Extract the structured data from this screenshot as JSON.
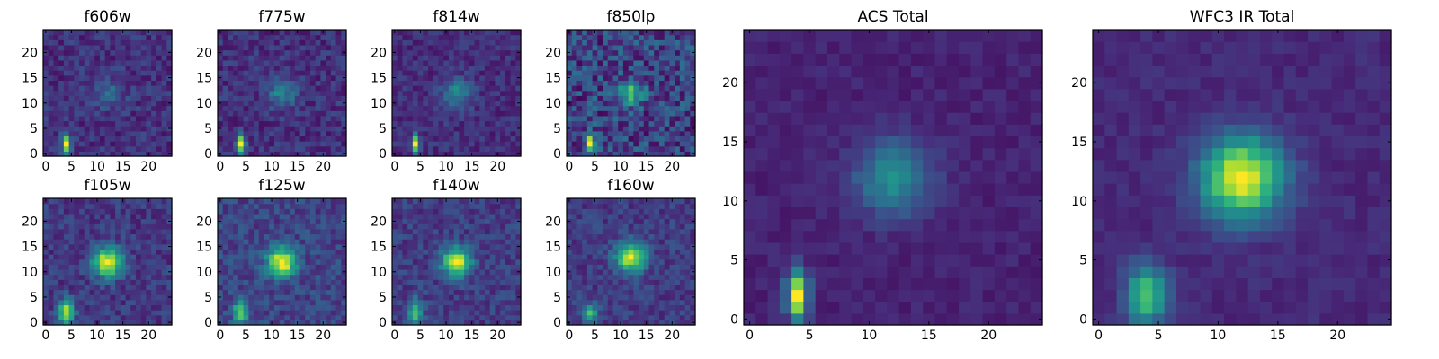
{
  "chart_data": [
    {
      "type": "heatmap",
      "title": "f606w",
      "xlim": [
        -0.5,
        24.5
      ],
      "ylim": [
        -0.5,
        24.5
      ],
      "xticks": [
        "0",
        "5",
        "10",
        "15",
        "20"
      ],
      "yticks": [
        "0",
        "5",
        "10",
        "15",
        "20"
      ],
      "sources": [
        {
          "x": 4,
          "y": 2,
          "sigma_x": 0.55,
          "sigma_y": 1.3,
          "amplitude": 0.9
        },
        {
          "x": 12,
          "y": 12,
          "sigma_x": 2.2,
          "sigma_y": 2.2,
          "amplitude": 0.2
        }
      ],
      "background": 0.15,
      "noise": 0.1
    },
    {
      "type": "heatmap",
      "title": "f775w",
      "xlim": [
        -0.5,
        24.5
      ],
      "ylim": [
        -0.5,
        24.5
      ],
      "xticks": [
        "0",
        "5",
        "10",
        "15",
        "20"
      ],
      "yticks": [
        "0",
        "5",
        "10",
        "15",
        "20"
      ],
      "sources": [
        {
          "x": 4,
          "y": 2,
          "sigma_x": 0.55,
          "sigma_y": 1.3,
          "amplitude": 0.85
        },
        {
          "x": 12,
          "y": 12,
          "sigma_x": 2.0,
          "sigma_y": 2.0,
          "amplitude": 0.3
        }
      ],
      "background": 0.15,
      "noise": 0.1
    },
    {
      "type": "heatmap",
      "title": "f814w",
      "xlim": [
        -0.5,
        24.5
      ],
      "ylim": [
        -0.5,
        24.5
      ],
      "xticks": [
        "0",
        "5",
        "10",
        "15",
        "20"
      ],
      "yticks": [
        "0",
        "5",
        "10",
        "15",
        "20"
      ],
      "sources": [
        {
          "x": 4,
          "y": 2,
          "sigma_x": 0.55,
          "sigma_y": 1.3,
          "amplitude": 0.85
        },
        {
          "x": 12,
          "y": 12,
          "sigma_x": 2.1,
          "sigma_y": 2.1,
          "amplitude": 0.35
        }
      ],
      "background": 0.15,
      "noise": 0.09
    },
    {
      "type": "heatmap",
      "title": "f850lp",
      "xlim": [
        -0.5,
        24.5
      ],
      "ylim": [
        -0.5,
        24.5
      ],
      "xticks": [
        "0",
        "5",
        "10",
        "15",
        "20"
      ],
      "yticks": [
        "0",
        "5",
        "10",
        "15",
        "20"
      ],
      "sources": [
        {
          "x": 4,
          "y": 2,
          "sigma_x": 0.55,
          "sigma_y": 1.3,
          "amplitude": 0.8
        },
        {
          "x": 12,
          "y": 12,
          "sigma_x": 1.7,
          "sigma_y": 1.7,
          "amplitude": 0.45
        }
      ],
      "background": 0.2,
      "noise": 0.18
    },
    {
      "type": "heatmap",
      "title": "f105w",
      "xlim": [
        -0.5,
        24.5
      ],
      "ylim": [
        -0.5,
        24.5
      ],
      "xticks": [
        "0",
        "5",
        "10",
        "15",
        "20"
      ],
      "yticks": [
        "0",
        "5",
        "10",
        "15",
        "20"
      ],
      "sources": [
        {
          "x": 4,
          "y": 2,
          "sigma_x": 1.0,
          "sigma_y": 1.8,
          "amplitude": 0.75
        },
        {
          "x": 12,
          "y": 12,
          "sigma_x": 2.0,
          "sigma_y": 2.0,
          "amplitude": 0.85
        }
      ],
      "background": 0.18,
      "noise": 0.1
    },
    {
      "type": "heatmap",
      "title": "f125w",
      "xlim": [
        -0.5,
        24.5
      ],
      "ylim": [
        -0.5,
        24.5
      ],
      "xticks": [
        "0",
        "5",
        "10",
        "15",
        "20"
      ],
      "yticks": [
        "0",
        "5",
        "10",
        "15",
        "20"
      ],
      "sources": [
        {
          "x": 4,
          "y": 2,
          "sigma_x": 1.0,
          "sigma_y": 1.8,
          "amplitude": 0.55
        },
        {
          "x": 12,
          "y": 12,
          "sigma_x": 1.9,
          "sigma_y": 1.9,
          "amplitude": 0.8
        }
      ],
      "background": 0.2,
      "noise": 0.1
    },
    {
      "type": "heatmap",
      "title": "f140w",
      "xlim": [
        -0.5,
        24.5
      ],
      "ylim": [
        -0.5,
        24.5
      ],
      "xticks": [
        "0",
        "5",
        "10",
        "15",
        "20"
      ],
      "yticks": [
        "0",
        "5",
        "10",
        "15",
        "20"
      ],
      "sources": [
        {
          "x": 4,
          "y": 2,
          "sigma_x": 1.0,
          "sigma_y": 1.8,
          "amplitude": 0.6
        },
        {
          "x": 12,
          "y": 12,
          "sigma_x": 1.9,
          "sigma_y": 1.9,
          "amplitude": 0.85
        }
      ],
      "background": 0.2,
      "noise": 0.1
    },
    {
      "type": "heatmap",
      "title": "f160w",
      "xlim": [
        -0.5,
        24.5
      ],
      "ylim": [
        -0.5,
        24.5
      ],
      "xticks": [
        "0",
        "5",
        "10",
        "15",
        "20"
      ],
      "yticks": [
        "0",
        "5",
        "10",
        "15",
        "20"
      ],
      "sources": [
        {
          "x": 4,
          "y": 2,
          "sigma_x": 1.1,
          "sigma_y": 1.3,
          "amplitude": 0.5
        },
        {
          "x": 12,
          "y": 13,
          "sigma_x": 2.0,
          "sigma_y": 2.0,
          "amplitude": 0.85
        }
      ],
      "background": 0.2,
      "noise": 0.1
    },
    {
      "type": "heatmap",
      "title": "ACS Total",
      "xlim": [
        -0.5,
        24.5
      ],
      "ylim": [
        -0.5,
        24.5
      ],
      "xticks": [
        "0",
        "5",
        "10",
        "15",
        "20"
      ],
      "yticks": [
        "0",
        "5",
        "10",
        "15",
        "20"
      ],
      "sources": [
        {
          "x": 4,
          "y": 2,
          "sigma_x": 0.6,
          "sigma_y": 1.4,
          "amplitude": 0.9
        },
        {
          "x": 12,
          "y": 12,
          "sigma_x": 2.2,
          "sigma_y": 2.2,
          "amplitude": 0.4
        }
      ],
      "background": 0.1,
      "noise": 0.04
    },
    {
      "type": "heatmap",
      "title": "WFC3 IR Total",
      "xlim": [
        -0.5,
        24.5
      ],
      "ylim": [
        -0.5,
        24.5
      ],
      "xticks": [
        "0",
        "5",
        "10",
        "15",
        "20"
      ],
      "yticks": [
        "0",
        "5",
        "10",
        "15",
        "20"
      ],
      "sources": [
        {
          "x": 4,
          "y": 2,
          "sigma_x": 1.2,
          "sigma_y": 1.8,
          "amplitude": 0.6
        },
        {
          "x": 12,
          "y": 12,
          "sigma_x": 2.4,
          "sigma_y": 2.4,
          "amplitude": 0.85
        }
      ],
      "background": 0.12,
      "noise": 0.04
    }
  ],
  "colormap": "viridis"
}
